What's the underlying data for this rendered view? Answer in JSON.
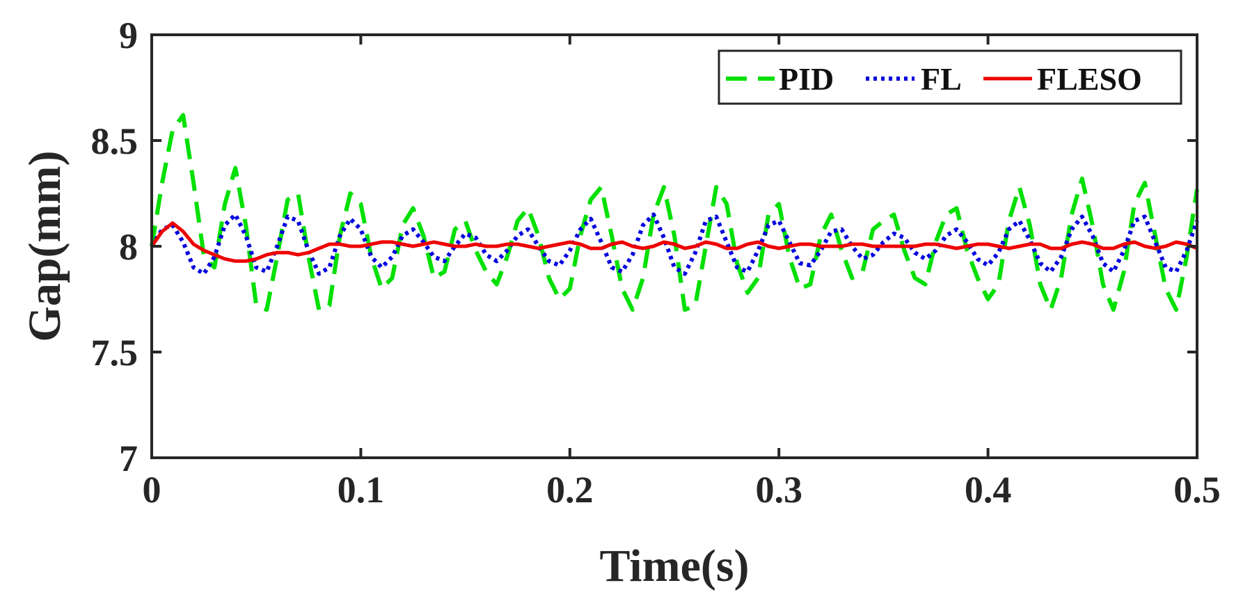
{
  "chart_data": {
    "type": "line",
    "title": "",
    "xlabel": "Time(s)",
    "ylabel": "Gap(mm)",
    "xlim": [
      0,
      0.5
    ],
    "ylim": [
      7,
      9
    ],
    "xticks": [
      0,
      0.1,
      0.2,
      0.3,
      0.4,
      0.5
    ],
    "xtick_labels": [
      "0",
      "0.1",
      "0.2",
      "0.3",
      "0.4",
      "0.5"
    ],
    "yticks": [
      7,
      7.5,
      8,
      8.5,
      9
    ],
    "ytick_labels": [
      "7",
      "7.5",
      "8",
      "8.5",
      "9"
    ],
    "grid": false,
    "legend_position": "top-right",
    "series": [
      {
        "name": "PID",
        "color": "#00e000",
        "style": "dashed",
        "x": [
          0,
          0.005,
          0.01,
          0.015,
          0.02,
          0.025,
          0.03,
          0.035,
          0.04,
          0.045,
          0.05,
          0.055,
          0.06,
          0.065,
          0.07,
          0.075,
          0.08,
          0.085,
          0.09,
          0.095,
          0.1,
          0.105,
          0.11,
          0.115,
          0.12,
          0.125,
          0.13,
          0.135,
          0.14,
          0.145,
          0.15,
          0.155,
          0.16,
          0.165,
          0.17,
          0.175,
          0.18,
          0.185,
          0.19,
          0.195,
          0.2,
          0.205,
          0.21,
          0.215,
          0.22,
          0.225,
          0.23,
          0.235,
          0.24,
          0.245,
          0.25,
          0.255,
          0.26,
          0.265,
          0.27,
          0.275,
          0.28,
          0.285,
          0.29,
          0.295,
          0.3,
          0.305,
          0.31,
          0.315,
          0.32,
          0.325,
          0.33,
          0.335,
          0.34,
          0.345,
          0.35,
          0.355,
          0.36,
          0.365,
          0.37,
          0.375,
          0.38,
          0.385,
          0.39,
          0.395,
          0.4,
          0.405,
          0.41,
          0.415,
          0.42,
          0.425,
          0.43,
          0.435,
          0.44,
          0.445,
          0.45,
          0.455,
          0.46,
          0.465,
          0.47,
          0.475,
          0.48,
          0.485,
          0.49,
          0.495,
          0.5
        ],
        "values": [
          8.0,
          8.3,
          8.55,
          8.62,
          8.3,
          7.95,
          7.9,
          8.2,
          8.37,
          8.1,
          7.72,
          7.7,
          7.95,
          8.22,
          8.25,
          7.95,
          7.7,
          7.72,
          8.05,
          8.25,
          8.2,
          7.95,
          7.8,
          7.85,
          8.1,
          8.18,
          8.05,
          7.85,
          7.88,
          8.08,
          8.12,
          7.98,
          7.88,
          7.82,
          7.95,
          8.12,
          8.18,
          8.05,
          7.85,
          7.75,
          7.8,
          8.05,
          8.22,
          8.28,
          8.05,
          7.8,
          7.7,
          7.85,
          8.15,
          8.28,
          8.05,
          7.7,
          7.72,
          8.0,
          8.28,
          8.2,
          7.92,
          7.78,
          7.85,
          8.15,
          8.2,
          7.95,
          7.8,
          7.82,
          8.05,
          8.15,
          7.98,
          7.85,
          7.88,
          8.08,
          8.12,
          8.15,
          7.98,
          7.85,
          7.82,
          8.02,
          8.15,
          8.18,
          7.98,
          7.85,
          7.75,
          7.82,
          8.12,
          8.28,
          8.1,
          7.82,
          7.7,
          7.85,
          8.15,
          8.32,
          8.1,
          7.82,
          7.7,
          7.88,
          8.2,
          8.3,
          8.05,
          7.8,
          7.7,
          7.95,
          8.27
        ]
      },
      {
        "name": "FL",
        "color": "#0000e0",
        "style": "dotted",
        "x": [
          0,
          0.005,
          0.01,
          0.015,
          0.02,
          0.025,
          0.03,
          0.035,
          0.04,
          0.045,
          0.05,
          0.055,
          0.06,
          0.065,
          0.07,
          0.075,
          0.08,
          0.085,
          0.09,
          0.095,
          0.1,
          0.105,
          0.11,
          0.115,
          0.12,
          0.125,
          0.13,
          0.135,
          0.14,
          0.145,
          0.15,
          0.155,
          0.16,
          0.165,
          0.17,
          0.175,
          0.18,
          0.185,
          0.19,
          0.195,
          0.2,
          0.205,
          0.21,
          0.215,
          0.22,
          0.225,
          0.23,
          0.235,
          0.24,
          0.245,
          0.25,
          0.255,
          0.26,
          0.265,
          0.27,
          0.275,
          0.28,
          0.285,
          0.29,
          0.295,
          0.3,
          0.305,
          0.31,
          0.315,
          0.32,
          0.325,
          0.33,
          0.335,
          0.34,
          0.345,
          0.35,
          0.355,
          0.36,
          0.365,
          0.37,
          0.375,
          0.38,
          0.385,
          0.39,
          0.395,
          0.4,
          0.405,
          0.41,
          0.415,
          0.42,
          0.425,
          0.43,
          0.435,
          0.44,
          0.445,
          0.45,
          0.455,
          0.46,
          0.465,
          0.47,
          0.475,
          0.48,
          0.485,
          0.49,
          0.495,
          0.5
        ],
        "values": [
          8.0,
          8.08,
          8.1,
          8.02,
          7.9,
          7.87,
          7.95,
          8.1,
          8.15,
          8.05,
          7.9,
          7.88,
          8.0,
          8.14,
          8.12,
          7.98,
          7.87,
          7.9,
          8.05,
          8.13,
          8.08,
          7.95,
          7.9,
          7.95,
          8.05,
          8.08,
          8.02,
          7.95,
          7.93,
          8.0,
          8.06,
          8.04,
          7.96,
          7.93,
          7.98,
          8.05,
          8.08,
          8.0,
          7.93,
          7.91,
          7.98,
          8.08,
          8.13,
          8.02,
          7.9,
          7.88,
          7.96,
          8.1,
          8.15,
          8.04,
          7.9,
          7.87,
          7.97,
          8.12,
          8.14,
          8.02,
          7.9,
          7.88,
          7.98,
          8.1,
          8.12,
          8.02,
          7.92,
          7.91,
          7.98,
          8.07,
          8.08,
          8.0,
          7.94,
          7.96,
          8.02,
          8.06,
          8.04,
          7.97,
          7.94,
          7.98,
          8.05,
          8.08,
          8.02,
          7.94,
          7.91,
          7.97,
          8.08,
          8.12,
          8.03,
          7.92,
          7.88,
          7.95,
          8.08,
          8.14,
          8.05,
          7.92,
          7.88,
          7.98,
          8.12,
          8.14,
          8.02,
          7.9,
          7.88,
          7.98,
          8.12
        ]
      },
      {
        "name": "FLESO",
        "color": "#ee0000",
        "style": "solid",
        "x": [
          0,
          0.005,
          0.01,
          0.015,
          0.02,
          0.025,
          0.03,
          0.035,
          0.04,
          0.045,
          0.05,
          0.055,
          0.06,
          0.065,
          0.07,
          0.075,
          0.08,
          0.085,
          0.09,
          0.095,
          0.1,
          0.105,
          0.11,
          0.115,
          0.12,
          0.125,
          0.13,
          0.135,
          0.14,
          0.145,
          0.15,
          0.155,
          0.16,
          0.165,
          0.17,
          0.175,
          0.18,
          0.185,
          0.19,
          0.195,
          0.2,
          0.205,
          0.21,
          0.215,
          0.22,
          0.225,
          0.23,
          0.235,
          0.24,
          0.245,
          0.25,
          0.255,
          0.26,
          0.265,
          0.27,
          0.275,
          0.28,
          0.285,
          0.29,
          0.295,
          0.3,
          0.305,
          0.31,
          0.315,
          0.32,
          0.325,
          0.33,
          0.335,
          0.34,
          0.345,
          0.35,
          0.355,
          0.36,
          0.365,
          0.37,
          0.375,
          0.38,
          0.385,
          0.39,
          0.395,
          0.4,
          0.405,
          0.41,
          0.415,
          0.42,
          0.425,
          0.43,
          0.435,
          0.44,
          0.445,
          0.45,
          0.455,
          0.46,
          0.465,
          0.47,
          0.475,
          0.48,
          0.485,
          0.49,
          0.495,
          0.5
        ],
        "values": [
          8.0,
          8.07,
          8.11,
          8.07,
          8.01,
          7.98,
          7.96,
          7.94,
          7.93,
          7.93,
          7.94,
          7.96,
          7.97,
          7.97,
          7.96,
          7.97,
          7.99,
          8.01,
          8.01,
          8.0,
          8.0,
          8.01,
          8.02,
          8.02,
          8.01,
          8.0,
          8.01,
          8.02,
          8.01,
          8.0,
          8.0,
          8.01,
          8.0,
          8.0,
          8.01,
          8.01,
          8.0,
          7.99,
          8.0,
          8.01,
          8.02,
          8.01,
          7.99,
          7.99,
          8.01,
          8.02,
          8.0,
          7.99,
          8.0,
          8.02,
          8.01,
          7.99,
          8.0,
          8.02,
          8.01,
          7.99,
          7.99,
          8.01,
          8.02,
          8.0,
          7.99,
          8.0,
          8.01,
          8.01,
          8.0,
          8.0,
          8.0,
          8.01,
          8.01,
          8.0,
          8.0,
          8.0,
          8.0,
          8.0,
          8.01,
          8.01,
          8.0,
          7.99,
          8.0,
          8.01,
          8.01,
          8.0,
          7.99,
          8.0,
          8.01,
          8.01,
          7.99,
          7.99,
          8.01,
          8.02,
          8.01,
          7.99,
          7.99,
          8.01,
          8.02,
          8.0,
          7.99,
          8.0,
          8.02,
          8.01,
          7.99
        ]
      }
    ]
  }
}
